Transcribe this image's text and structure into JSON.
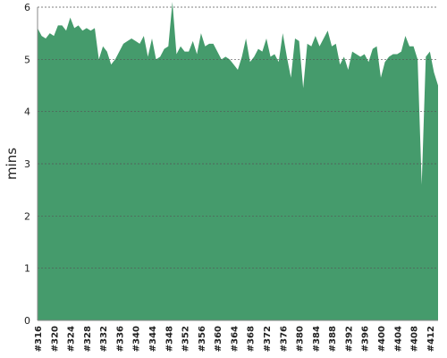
{
  "chart_data": {
    "type": "area",
    "y_label": "mins",
    "color": "#459b6c",
    "grid": true,
    "ylim": [
      0,
      6
    ],
    "yticks": [
      0,
      1,
      2,
      3,
      4,
      5,
      6
    ],
    "categories": [
      "#316",
      null,
      null,
      null,
      "#320",
      null,
      null,
      null,
      "#324",
      null,
      null,
      null,
      "#328",
      null,
      null,
      null,
      "#332",
      null,
      null,
      null,
      "#336",
      null,
      null,
      null,
      "#340",
      null,
      null,
      null,
      "#344",
      null,
      null,
      null,
      "#348",
      null,
      null,
      null,
      "#352",
      null,
      null,
      null,
      "#356",
      null,
      null,
      null,
      "#360",
      null,
      null,
      null,
      "#364",
      null,
      null,
      null,
      "#368",
      null,
      null,
      null,
      "#372",
      null,
      null,
      null,
      "#376",
      null,
      null,
      null,
      "#380",
      null,
      null,
      null,
      "#384",
      null,
      null,
      null,
      "#388",
      null,
      null,
      null,
      "#392",
      null,
      null,
      null,
      "#396",
      null,
      null,
      null,
      "#400",
      null,
      null,
      null,
      "#404",
      null,
      null,
      null,
      "#408",
      null,
      null,
      null,
      "#412",
      null,
      null
    ],
    "values": [
      5.6,
      5.45,
      5.4,
      5.5,
      5.45,
      5.65,
      5.65,
      5.55,
      5.8,
      5.6,
      5.65,
      5.55,
      5.6,
      5.55,
      5.6,
      5.0,
      5.25,
      5.15,
      4.9,
      5.0,
      5.15,
      5.3,
      5.35,
      5.4,
      5.35,
      5.3,
      5.45,
      5.05,
      5.4,
      5.0,
      5.05,
      5.2,
      5.25,
      6.1,
      5.1,
      5.25,
      5.15,
      5.15,
      5.35,
      5.1,
      5.5,
      5.25,
      5.3,
      5.3,
      5.15,
      5.0,
      5.05,
      5.0,
      4.9,
      4.8,
      5.05,
      5.4,
      4.95,
      5.05,
      5.2,
      5.15,
      5.4,
      5.05,
      5.1,
      4.95,
      5.5,
      5.05,
      4.65,
      5.4,
      5.35,
      4.45,
      5.3,
      5.25,
      5.45,
      5.25,
      5.4,
      5.55,
      5.25,
      5.3,
      4.9,
      5.05,
      4.8,
      5.15,
      5.1,
      5.05,
      5.1,
      4.95,
      5.2,
      5.25,
      4.65,
      4.95,
      5.05,
      5.1,
      5.1,
      5.15,
      5.45,
      5.25,
      5.25,
      5.0,
      2.6,
      5.05,
      5.15,
      4.75,
      4.5
    ]
  }
}
